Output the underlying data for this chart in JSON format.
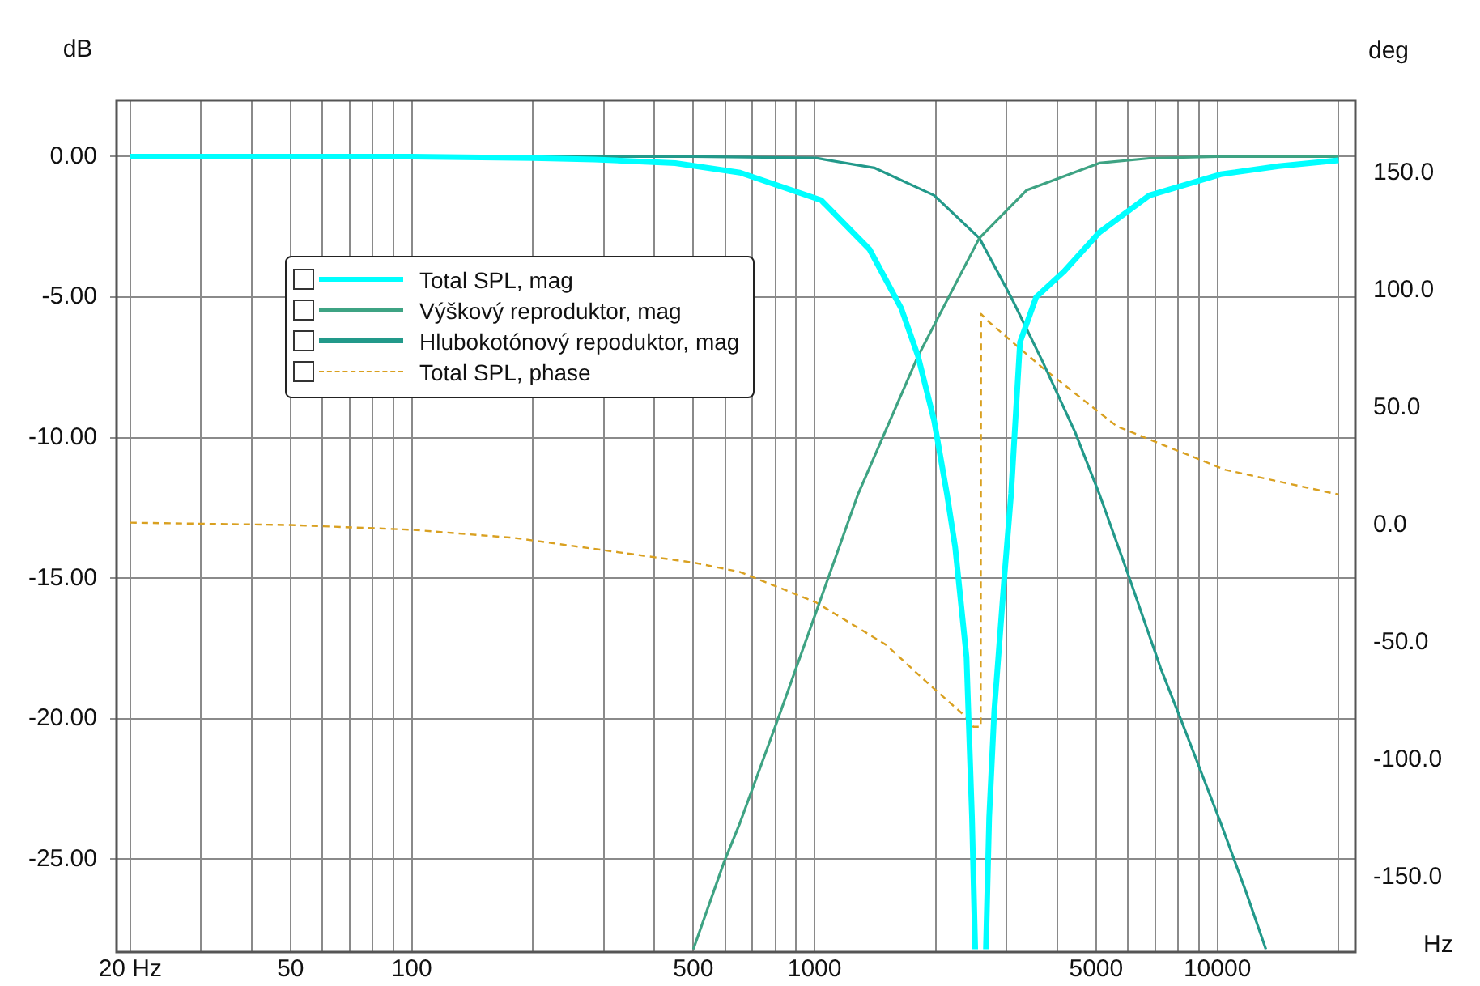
{
  "chart_data": {
    "type": "line",
    "xlabel": "Hz",
    "ylabel": "dB",
    "y2label": "deg",
    "log": "x",
    "grid": true,
    "legend": "top left",
    "marker": "none",
    "xlim": [
      18.5,
      22000
    ],
    "xticks": [
      {
        "value": 20,
        "label": "20 Hz"
      },
      {
        "value": 30,
        "label": null
      },
      {
        "value": 40,
        "label": null
      },
      50,
      {
        "value": 60,
        "label": null
      },
      {
        "value": 70,
        "label": null
      },
      {
        "value": 80,
        "label": null
      },
      {
        "value": 90,
        "label": null
      },
      100,
      {
        "value": 200,
        "label": null
      },
      {
        "value": 300,
        "label": null
      },
      {
        "value": 400,
        "label": null
      },
      500,
      {
        "value": 600,
        "label": null
      },
      {
        "value": 700,
        "label": null
      },
      {
        "value": 800,
        "label": null
      },
      {
        "value": 900,
        "label": null
      },
      1000,
      {
        "value": 2000,
        "label": null
      },
      {
        "value": 3000,
        "label": null
      },
      {
        "value": 4000,
        "label": null
      },
      5000,
      {
        "value": 6000,
        "label": null
      },
      {
        "value": 7000,
        "label": null
      },
      {
        "value": 8000,
        "label": null
      },
      {
        "value": 9000,
        "label": null
      },
      10000,
      {
        "value": 20000,
        "label": null
      }
    ],
    "ylim": [
      -28.3,
      2
    ],
    "yticks": [
      {
        "value": 0,
        "label": "0.00"
      },
      {
        "value": -5,
        "label": "-5.00"
      },
      {
        "value": -10,
        "label": "-10.00"
      },
      {
        "value": -15,
        "label": "-15.00"
      },
      {
        "value": -20,
        "label": "-20.00"
      },
      {
        "value": -25,
        "label": "-25.00"
      }
    ],
    "y2lim": [
      -182,
      181
    ],
    "y2ticks": [
      {
        "value": 150,
        "label": "150.0"
      },
      {
        "value": 100,
        "label": "100.0"
      },
      {
        "value": 50,
        "label": "50.0"
      },
      {
        "value": 0,
        "label": "0.0"
      },
      {
        "value": -50,
        "label": "-50.0"
      },
      {
        "value": -100,
        "label": "-100.0"
      },
      {
        "value": -150,
        "label": "-150.0"
      }
    ],
    "series": [
      {
        "name": "Total SPL, mag",
        "color": "#00ffff",
        "line_style": "solid",
        "x": [
          20,
          100,
          200,
          284,
          451,
          653,
          1038,
          1369,
          1641,
          1806,
          1981,
          2131,
          2234,
          2383,
          2459,
          2505,
          2580,
          2663,
          2713,
          2794,
          2961,
          3075,
          3236,
          3549,
          4152,
          5091,
          6777,
          10187,
          14192,
          20000
        ],
        "values": [
          0,
          0,
          -0.05,
          -0.1,
          -0.23,
          -0.57,
          -1.55,
          -3.3,
          -5.4,
          -7.1,
          -9.4,
          -12.0,
          -13.9,
          -17.8,
          -23.5,
          -28.2,
          null,
          -28.2,
          -23.5,
          -19.7,
          -14.9,
          -12.0,
          -6.6,
          -5.0,
          -4.1,
          -2.7,
          -1.38,
          -0.63,
          -0.34,
          -0.13
        ]
      },
      {
        "name": "Výškový reproduktor, mag",
        "color": "#3ea383",
        "line_style": "solid",
        "x": [
          500,
          596,
          653,
          807,
          1009,
          1283,
          1806,
          2565,
          3358,
          5091,
          6777,
          10000,
          20000
        ],
        "values": [
          -28.2,
          -25.1,
          -23.7,
          -20.1,
          -16.2,
          -12.0,
          -7.1,
          -2.9,
          -1.2,
          -0.23,
          -0.06,
          0,
          0
        ]
      },
      {
        "name": "Hlubokotónový repoduktor, mag",
        "color": "#22998a",
        "line_style": "solid",
        "x": [
          20,
          100,
          500,
          1009,
          1407,
          1981,
          2565,
          3075,
          3683,
          4431,
          5091,
          6016,
          7229,
          8154,
          10187,
          11807,
          13195
        ],
        "values": [
          0,
          0,
          0,
          -0.05,
          -0.4,
          -1.38,
          -2.9,
          -5.0,
          -7.3,
          -9.8,
          -12.0,
          -14.9,
          -18.2,
          -20.1,
          -23.7,
          -26.2,
          -28.2
        ]
      },
      {
        "name": "Total SPL, phase",
        "color": "#d9a020",
        "line_style": "dashed",
        "axis": "y2",
        "x": [
          20,
          50,
          100,
          180,
          500,
          653,
          1009,
          1503,
          1927,
          2383,
          2478,
          2585,
          2590,
          2690,
          3683,
          5636,
          10474,
          20000
        ],
        "values": [
          1,
          0,
          -2,
          -5.5,
          -16,
          -20,
          -33,
          -51,
          -68,
          -82,
          -86,
          -86,
          90,
          87,
          67,
          42,
          23.5,
          13
        ]
      }
    ]
  }
}
